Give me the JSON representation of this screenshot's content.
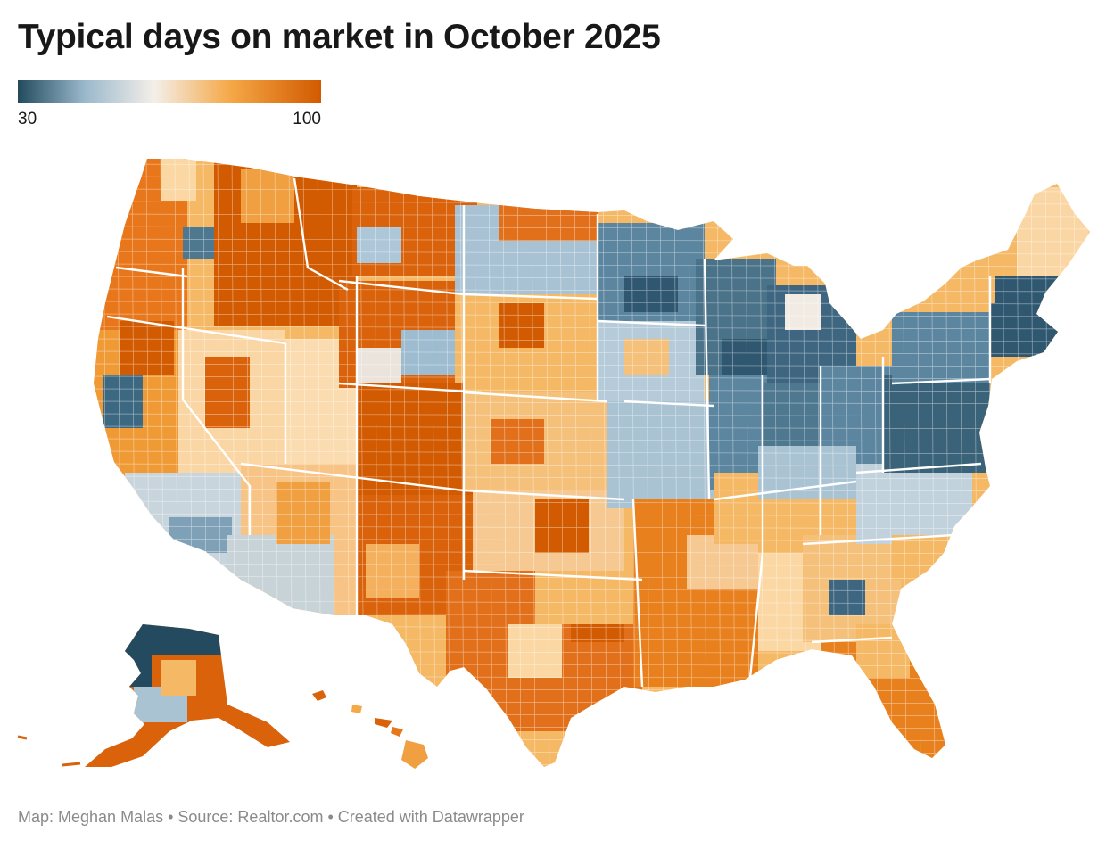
{
  "header": {
    "title": "Typical days on market in October 2025"
  },
  "legend": {
    "min_label": "30",
    "max_label": "100",
    "scale": [
      30,
      100
    ],
    "colors": [
      "#234a5e",
      "#5d86a1",
      "#a8c4d5",
      "#f4efe9",
      "#fcd9a9",
      "#f5a847",
      "#ec7a0f",
      "#d25a00"
    ]
  },
  "palette": {
    "dark_blue": "#234a5e",
    "blue": "#5d86a1",
    "light_blue": "#a8c4d5",
    "grey_blue": "#c8d3d8",
    "cream": "#f4efe9",
    "light_orange": "#fcd9a9",
    "orange": "#f5a847",
    "deep_orange": "#ec7a0f",
    "burnt_orange": "#d25a00"
  },
  "map": {
    "type": "choropleth",
    "geography": "US counties"
  },
  "footer": {
    "text": "Map: Meghan Malas • Source: Realtor.com • Created with Datawrapper",
    "credit": "Map: Meghan Malas",
    "source": "Source: Realtor.com",
    "tool": "Created with Datawrapper"
  }
}
